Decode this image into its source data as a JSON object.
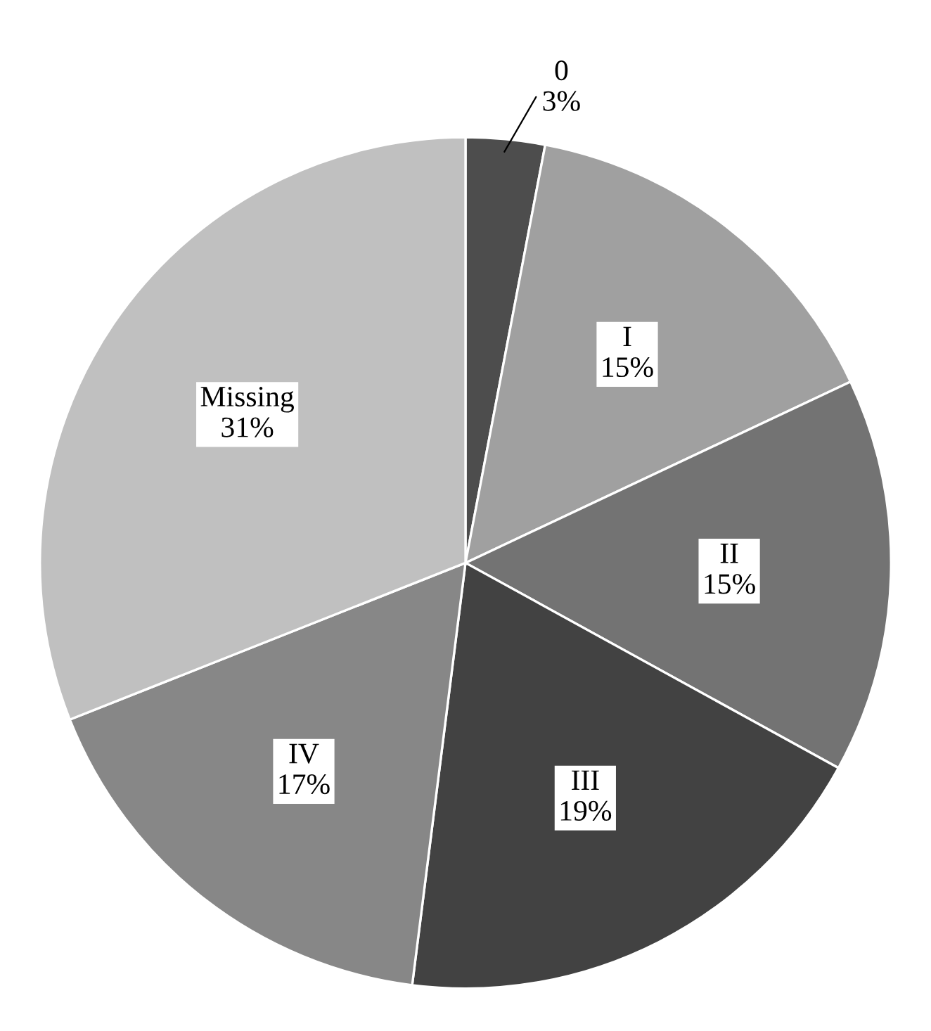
{
  "chart_data": {
    "type": "pie",
    "categories": [
      "0",
      "I",
      "II",
      "III",
      "IV",
      "Missing"
    ],
    "values": [
      3,
      15,
      15,
      19,
      17,
      31
    ],
    "value_labels": [
      "3%",
      "15%",
      "15%",
      "19%",
      "17%",
      "31%"
    ],
    "colors": [
      "#4d4d4d",
      "#a0a0a0",
      "#737373",
      "#424242",
      "#878787",
      "#c0c0c0"
    ]
  }
}
